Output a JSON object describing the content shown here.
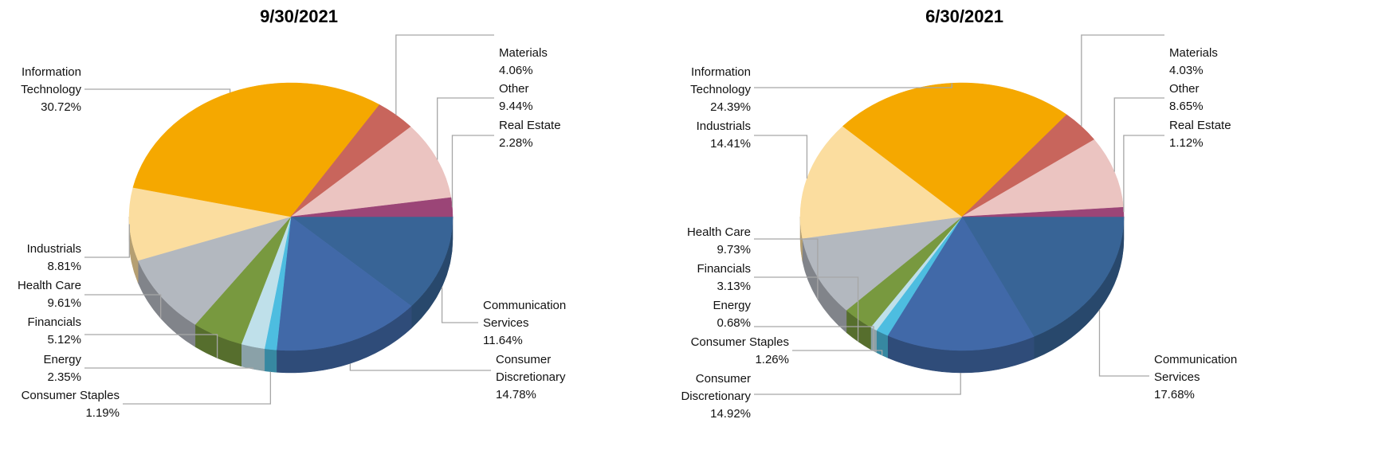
{
  "chart_data": [
    {
      "type": "pie",
      "title": "9/30/2021",
      "categories": [
        "Communication Services",
        "Consumer Discretionary",
        "Consumer Staples",
        "Energy",
        "Financials",
        "Health Care",
        "Industrials",
        "Information Technology",
        "Materials",
        "Other",
        "Real Estate"
      ],
      "values": [
        11.64,
        14.78,
        1.19,
        2.35,
        5.12,
        9.61,
        8.81,
        30.72,
        4.06,
        9.44,
        2.28
      ],
      "value_labels": [
        "11.64%",
        "14.78%",
        "1.19%",
        "2.35%",
        "5.12%",
        "9.61%",
        "8.81%",
        "30.72%",
        "4.06%",
        "9.44%",
        "2.28%"
      ],
      "colors": [
        "#386496",
        "#4169a8",
        "#4dbde0",
        "#bfe0ea",
        "#78993f",
        "#b3b8bf",
        "#fbdd9f",
        "#f5a800",
        "#c8655c",
        "#ebc4c1",
        "#9b4577"
      ]
    },
    {
      "type": "pie",
      "title": "6/30/2021",
      "categories": [
        "Communication Services",
        "Consumer Discretionary",
        "Consumer Staples",
        "Energy",
        "Financials",
        "Health Care",
        "Industrials",
        "Information Technology",
        "Materials",
        "Other",
        "Real Estate"
      ],
      "values": [
        17.68,
        14.92,
        1.26,
        0.68,
        3.13,
        9.73,
        14.41,
        24.39,
        4.03,
        8.65,
        1.12
      ],
      "value_labels": [
        "17.68%",
        "14.92%",
        "1.26%",
        "0.68%",
        "3.13%",
        "9.73%",
        "14.41%",
        "24.39%",
        "4.03%",
        "8.65%",
        "1.12%"
      ],
      "colors": [
        "#386496",
        "#4169a8",
        "#4dbde0",
        "#bfe0ea",
        "#78993f",
        "#b3b8bf",
        "#fbdd9f",
        "#f5a800",
        "#c8655c",
        "#ebc4c1",
        "#9b4577"
      ]
    }
  ]
}
